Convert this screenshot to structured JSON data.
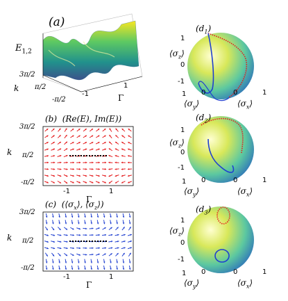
{
  "panel_a": {
    "label": "(a)",
    "zlabel": "E",
    "zlabel_sub": "1,2",
    "ylabel": "k",
    "ticks_k": [
      "3π/2",
      "π/2",
      "-π/2"
    ],
    "ticks_gamma": [
      "-1",
      "1"
    ],
    "xlabel": "Γ"
  },
  "panel_b": {
    "label": "(b)",
    "title": "(Re(E), Im(E))",
    "ylabel": "k",
    "ticks_k": [
      "3π/2",
      "π/2",
      "-π/2"
    ],
    "ticks_gamma": [
      "-1",
      "1"
    ],
    "xlabel": "Γ",
    "arrow_color": "#e41a1c"
  },
  "panel_c": {
    "label": "(c)",
    "title": "(⟨σ",
    "title_sub1": "x",
    "title_mid": "⟩, ⟨σ",
    "title_sub2": "z",
    "title_end": "⟩)",
    "ylabel": "k",
    "ticks_k": [
      "3π/2",
      "π/2",
      "-π/2"
    ],
    "ticks_gamma": [
      "-1",
      "1"
    ],
    "xlabel": "Γ",
    "arrow_color": "#1f3fd0"
  },
  "spheres": [
    {
      "label": "(d",
      "sub": "1",
      "label_end": ")",
      "ticks_z": [
        "1",
        "0",
        "-1"
      ],
      "tick_y": "0",
      "tick_x": "0",
      "tick_y1": "1",
      "tick_x1": "1"
    },
    {
      "label": "(d",
      "sub": "2",
      "label_end": ")",
      "ticks_z": [
        "1",
        "0",
        "-1"
      ],
      "tick_y": "0",
      "tick_x": "0",
      "tick_y1": "1",
      "tick_x1": "1"
    },
    {
      "label": "(d",
      "sub": "3",
      "label_end": ")",
      "ticks_z": [
        "1",
        "0",
        "-1"
      ],
      "tick_y": "0",
      "tick_x": "0",
      "tick_y1": "1",
      "tick_x1": "1"
    }
  ],
  "sphere_axis": {
    "z": "⟨σ",
    "z_sub": "z",
    "y": "⟨σ",
    "y_sub": "y",
    "x": "⟨σ",
    "x_sub": "x",
    "close": "⟩"
  }
}
